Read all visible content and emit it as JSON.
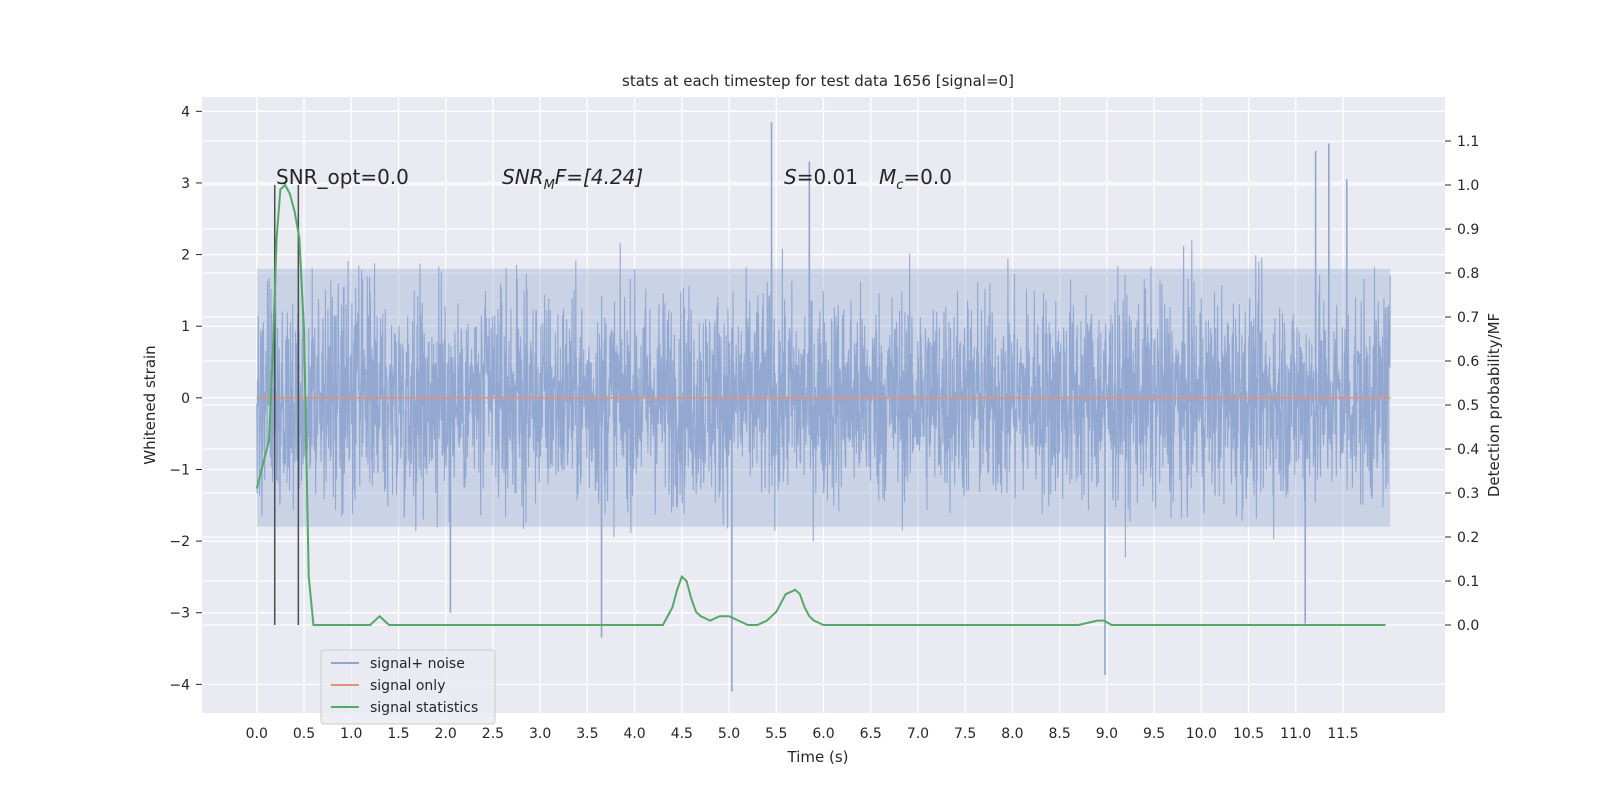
{
  "chart_data": {
    "type": "line",
    "title": "stats at each timestep for test data 1656 [signal=0]",
    "xlabel": "Time (s)",
    "ylabel": "Whitened strain",
    "ylabel_right": "Detection probability/MF",
    "xlim": [
      -0.58,
      12.58
    ],
    "ylim": [
      -4.4,
      4.2
    ],
    "ylim_right": [
      -0.2,
      1.2
    ],
    "x_ticks": [
      0.0,
      0.5,
      1.0,
      1.5,
      2.0,
      2.5,
      3.0,
      3.5,
      4.0,
      4.5,
      5.0,
      5.5,
      6.0,
      6.5,
      7.0,
      7.5,
      8.0,
      8.5,
      9.0,
      9.5,
      10.0,
      10.5,
      11.0,
      11.5
    ],
    "x_tick_labels": [
      "0.0",
      "0.5",
      "1.0",
      "1.5",
      "2.0",
      "2.5",
      "3.0",
      "3.5",
      "4.0",
      "4.5",
      "5.0",
      "5.5",
      "6.0",
      "6.5",
      "7.0",
      "7.5",
      "8.0",
      "8.5",
      "9.0",
      "9.5",
      "10.0",
      "10.5",
      "11.0",
      "11.5"
    ],
    "y_ticks": [
      -4,
      -3,
      -2,
      -1,
      0,
      1,
      2,
      3,
      4
    ],
    "y_tick_labels": [
      "−4",
      "−3",
      "−2",
      "−1",
      "0",
      "1",
      "2",
      "3",
      "4"
    ],
    "y_right_ticks": [
      0.0,
      0.1,
      0.2,
      0.3,
      0.4,
      0.5,
      0.6,
      0.7,
      0.8,
      0.9,
      1.0,
      1.1
    ],
    "y_right_tick_labels": [
      "0.0",
      "0.1",
      "0.2",
      "0.3",
      "0.4",
      "0.5",
      "0.6",
      "0.7",
      "0.8",
      "0.9",
      "1.0",
      "1.1"
    ],
    "grid": true,
    "legend_position": "lower-left",
    "annotations": {
      "snr_opt": "SNR_opt=0.0",
      "snr_mf_main": "SNR",
      "snr_mf_sub": "M",
      "snr_mf_rest": "F=[4.24]",
      "s_main": "S",
      "s_rest": "=0.01",
      "mc_main": "M",
      "mc_sub": "c",
      "mc_rest": "=0.0"
    },
    "vlines": [
      0.19,
      0.44
    ],
    "series": [
      {
        "name": "signal+ noise",
        "color": "#8fa6d0",
        "axis": "left",
        "x_range": [
          0.0,
          12.0
        ],
        "typical_envelope": [
          -1.8,
          1.8
        ],
        "extreme_points": [
          {
            "x": 5.45,
            "y": 3.85
          },
          {
            "x": 5.03,
            "y": -4.1
          },
          {
            "x": 8.98,
            "y": -3.87
          },
          {
            "x": 11.35,
            "y": 3.55
          },
          {
            "x": 11.1,
            "y": -3.15
          },
          {
            "x": 11.21,
            "y": 3.45
          },
          {
            "x": 11.54,
            "y": 3.05
          },
          {
            "x": 2.05,
            "y": -3.0
          },
          {
            "x": 3.65,
            "y": -3.35
          },
          {
            "x": 5.85,
            "y": 3.3
          }
        ]
      },
      {
        "name": "signal only",
        "color": "#e1937a",
        "axis": "left",
        "x": [
          0.0,
          12.0
        ],
        "y": [
          0.0,
          0.0
        ]
      },
      {
        "name": "signal statistics",
        "color": "#55a868",
        "axis": "right",
        "x": [
          0.0,
          0.13,
          0.17,
          0.21,
          0.25,
          0.3,
          0.35,
          0.4,
          0.45,
          0.5,
          0.55,
          0.6,
          0.65,
          0.72,
          0.8,
          0.9,
          1.0,
          1.1,
          1.2,
          1.3,
          1.4,
          1.5,
          1.6,
          1.7,
          1.8,
          2.0,
          2.5,
          3.0,
          3.5,
          4.0,
          4.3,
          4.4,
          4.45,
          4.5,
          4.55,
          4.6,
          4.65,
          4.7,
          4.8,
          4.9,
          5.0,
          5.1,
          5.2,
          5.3,
          5.4,
          5.5,
          5.6,
          5.7,
          5.75,
          5.8,
          5.85,
          5.9,
          6.0,
          6.1,
          6.2,
          6.4,
          6.5,
          7.0,
          7.5,
          8.0,
          8.5,
          8.7,
          8.9,
          8.97,
          9.05,
          9.2,
          9.5,
          10.0,
          10.5,
          11.0,
          11.5,
          11.8,
          11.95
        ],
        "y": [
          0.31,
          0.42,
          0.62,
          0.88,
          0.99,
          1.0,
          0.98,
          0.94,
          0.88,
          0.67,
          0.11,
          0.0,
          0.0,
          0.0,
          0.0,
          0.0,
          0.0,
          0.0,
          0.0,
          0.02,
          0.0,
          0.0,
          0.0,
          0.0,
          0.0,
          0.0,
          0.0,
          0.0,
          0.0,
          0.0,
          0.0,
          0.04,
          0.08,
          0.11,
          0.1,
          0.06,
          0.03,
          0.02,
          0.01,
          0.02,
          0.02,
          0.01,
          0.0,
          0.0,
          0.01,
          0.03,
          0.07,
          0.08,
          0.07,
          0.04,
          0.02,
          0.01,
          0.0,
          0.0,
          0.0,
          0.0,
          0.0,
          0.0,
          0.0,
          0.0,
          0.0,
          0.0,
          0.01,
          0.01,
          0.0,
          0.0,
          0.0,
          0.0,
          0.0,
          0.0,
          0.0,
          0.0,
          0.0
        ]
      }
    ]
  }
}
